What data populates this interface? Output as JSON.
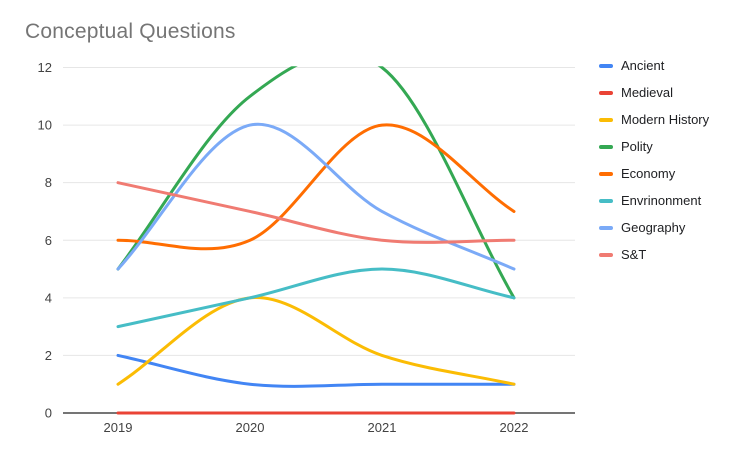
{
  "chart": {
    "title": "Conceptual Questions",
    "colors": {
      "title_text": "#757575",
      "background": "#ffffff",
      "gridline": "#e6e6e6",
      "baseline": "#757575",
      "tick_label": "#424242",
      "legend_text": "#202124"
    }
  },
  "chart_data": {
    "type": "line",
    "smooth": true,
    "title": "Conceptual Questions",
    "xlabel": "",
    "ylabel": "",
    "categories": [
      "2019",
      "2020",
      "2021",
      "2022"
    ],
    "series": [
      {
        "name": "Ancient",
        "color": "#4285F4",
        "values": [
          2,
          1,
          1,
          1
        ]
      },
      {
        "name": "Medieval",
        "color": "#EA4335",
        "values": [
          0,
          0,
          0,
          0
        ]
      },
      {
        "name": "Modern History",
        "color": "#FBBC04",
        "values": [
          1,
          4,
          2,
          1
        ]
      },
      {
        "name": "Polity",
        "color": "#34A853",
        "values": [
          5,
          11,
          12,
          4
        ]
      },
      {
        "name": "Economy",
        "color": "#FF6D01",
        "values": [
          6,
          6,
          10,
          7
        ]
      },
      {
        "name": "Envrinonment",
        "color": "#46BDC6",
        "values": [
          3,
          4,
          5,
          4
        ]
      },
      {
        "name": "Geography",
        "color": "#7BAAF7",
        "values": [
          5,
          10,
          7,
          5
        ]
      },
      {
        "name": "S&T",
        "color": "#F07B72",
        "values": [
          8,
          7,
          6,
          6
        ]
      }
    ],
    "ylim": [
      0,
      12
    ],
    "yticks": [
      0,
      2,
      4,
      6,
      8,
      10,
      12
    ],
    "grid": true,
    "legend_position": "right",
    "note": "Polity curve overshoots above y-axis max between 2020 and 2021 and is clipped at top of plot area"
  }
}
